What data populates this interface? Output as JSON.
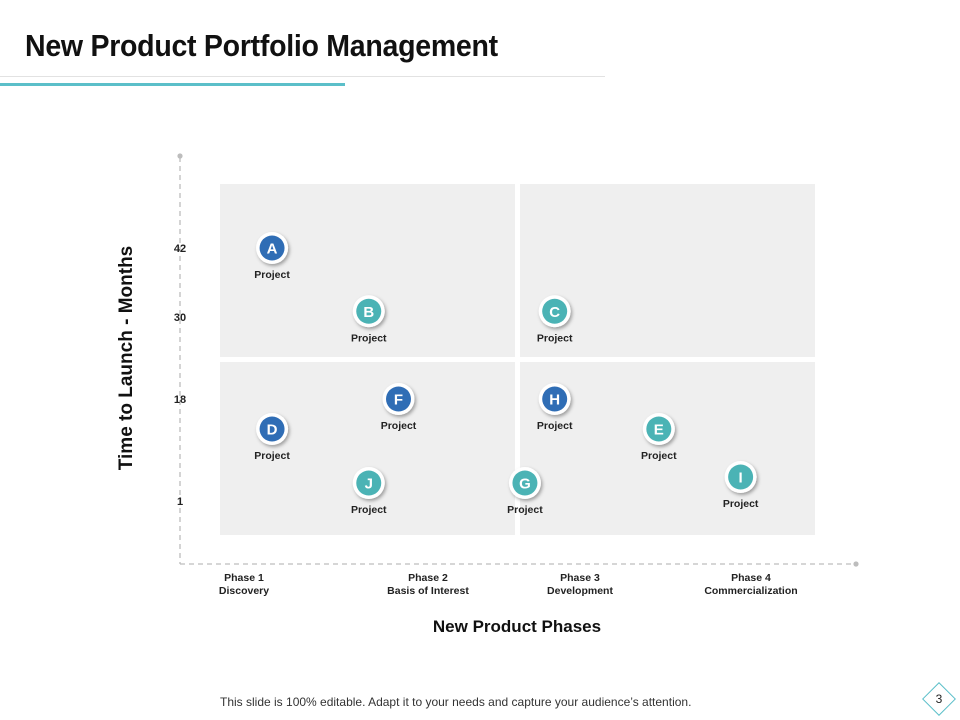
{
  "slide": {
    "title": "New Product Portfolio Management",
    "footer": "This slide is 100% editable. Adapt it to your needs and capture your audience’s attention.",
    "page_number": "3"
  },
  "colors": {
    "accent_teal": "#5bbfc9",
    "blue_marker": "#2f6db5",
    "teal_marker": "#4bb3b5",
    "quadrant_fill": "#efefef",
    "axis": "#bdbdbd"
  },
  "chart_data": {
    "type": "scatter",
    "title": "",
    "xlabel": "New Product Phases",
    "ylabel": "Time to Launch - Months",
    "categories": [
      {
        "line1": "Phase 1",
        "line2": "Discovery"
      },
      {
        "line1": "Phase 2",
        "line2": "Basis of Interest"
      },
      {
        "line1": "Phase 3",
        "line2": "Development"
      },
      {
        "line1": "Phase 4",
        "line2": "Commercialization"
      }
    ],
    "y_ticks": [
      42,
      30,
      18,
      1
    ],
    "points": [
      {
        "id": "A",
        "label": "Project",
        "x": 0.35,
        "y": 42,
        "color": "blue"
      },
      {
        "id": "B",
        "label": "Project",
        "x": 1.0,
        "y": 31,
        "color": "teal"
      },
      {
        "id": "C",
        "label": "Project",
        "x": 2.25,
        "y": 31,
        "color": "teal"
      },
      {
        "id": "D",
        "label": "Project",
        "x": 0.35,
        "y": 13,
        "color": "blue"
      },
      {
        "id": "E",
        "label": "Project",
        "x": 2.95,
        "y": 13,
        "color": "teal"
      },
      {
        "id": "F",
        "label": "Project",
        "x": 1.2,
        "y": 18,
        "color": "blue"
      },
      {
        "id": "G",
        "label": "Project",
        "x": 2.05,
        "y": 4,
        "color": "teal"
      },
      {
        "id": "H",
        "label": "Project",
        "x": 2.25,
        "y": 18,
        "color": "blue"
      },
      {
        "id": "I",
        "label": "Project",
        "x": 3.5,
        "y": 5,
        "color": "teal"
      },
      {
        "id": "J",
        "label": "Project",
        "x": 1.0,
        "y": 4,
        "color": "teal"
      }
    ]
  }
}
